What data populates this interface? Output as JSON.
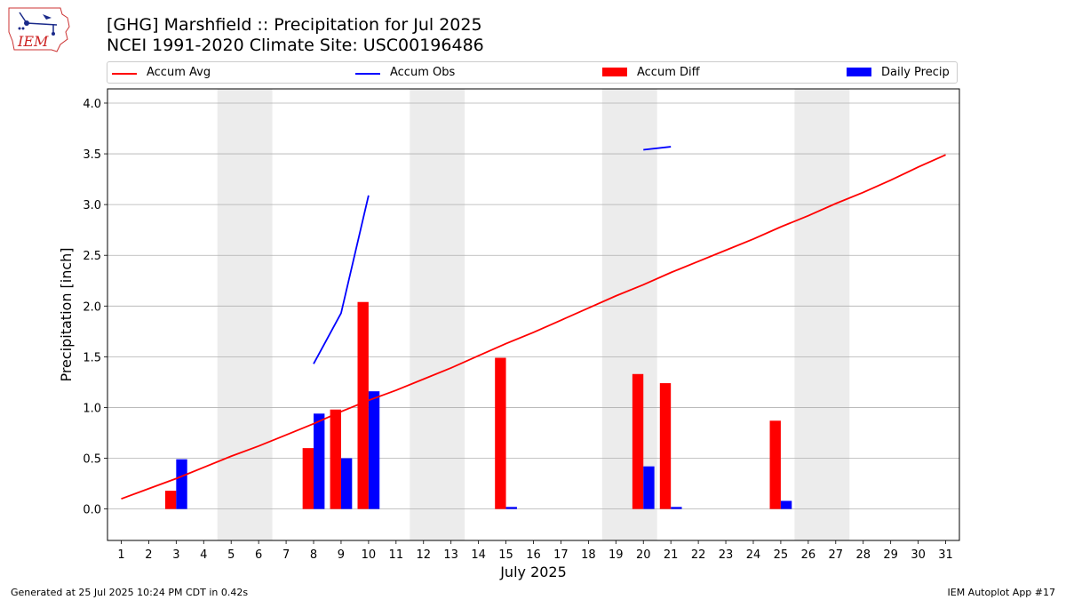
{
  "header": {
    "title_line1": "[GHG] Marshfield :: Precipitation for Jul 2025",
    "title_line2": "NCEI 1991-2020 Climate Site: USC00196486",
    "logo_text": "IEM"
  },
  "footer": {
    "left": "Generated at 25 Jul 2025 10:24 PM CDT in 0.42s",
    "right": "IEM Autoplot App #17"
  },
  "colors": {
    "accum_avg": "#ff0000",
    "accum_obs": "#0000ff",
    "accum_diff": "#ff0000",
    "daily_precip": "#0000ff",
    "weekend_shade": "#ececec",
    "grid": "#b0b0b0"
  },
  "chart_data": {
    "type": "bar",
    "xlabel": "July 2025",
    "ylabel": "Precipitation [inch]",
    "xlim": [
      0.5,
      31.5
    ],
    "ylim": [
      -0.31,
      4.14
    ],
    "x_ticks": [
      1,
      2,
      3,
      4,
      5,
      6,
      7,
      8,
      9,
      10,
      11,
      12,
      13,
      14,
      15,
      16,
      17,
      18,
      19,
      20,
      21,
      22,
      23,
      24,
      25,
      26,
      27,
      28,
      29,
      30,
      31
    ],
    "y_ticks": [
      0.0,
      0.5,
      1.0,
      1.5,
      2.0,
      2.5,
      3.0,
      3.5,
      4.0
    ],
    "y_tick_labels": [
      "0.0",
      "0.5",
      "1.0",
      "1.5",
      "2.0",
      "2.5",
      "3.0",
      "3.5",
      "4.0"
    ],
    "grid": "horizontal",
    "legend": {
      "placement": "top",
      "entries": [
        {
          "label": "Accum Avg",
          "kind": "line",
          "color": "#ff0000"
        },
        {
          "label": "Accum Obs",
          "kind": "line",
          "color": "#0000ff"
        },
        {
          "label": "Accum Diff",
          "kind": "bar",
          "color": "#ff0000"
        },
        {
          "label": "Daily Precip",
          "kind": "bar",
          "color": "#0000ff"
        }
      ]
    },
    "weekend_spans": [
      [
        5,
        6
      ],
      [
        12,
        13
      ],
      [
        19,
        20
      ],
      [
        26,
        27
      ]
    ],
    "accum_avg": {
      "x": [
        1,
        2,
        3,
        4,
        5,
        6,
        7,
        8,
        9,
        10,
        11,
        12,
        13,
        14,
        15,
        16,
        17,
        18,
        19,
        20,
        21,
        22,
        23,
        24,
        25,
        26,
        27,
        28,
        29,
        30,
        31
      ],
      "y": [
        0.1,
        0.2,
        0.3,
        0.41,
        0.52,
        0.62,
        0.73,
        0.84,
        0.96,
        1.07,
        1.17,
        1.28,
        1.39,
        1.51,
        1.63,
        1.74,
        1.86,
        1.98,
        2.1,
        2.21,
        2.33,
        2.44,
        2.55,
        2.66,
        2.78,
        2.89,
        3.01,
        3.12,
        3.24,
        3.37,
        3.49
      ]
    },
    "accum_obs": [
      {
        "x": [
          8,
          9,
          10
        ],
        "y": [
          1.43,
          1.93,
          3.09
        ]
      },
      {
        "x": [
          20,
          21
        ],
        "y": [
          3.54,
          3.57
        ]
      }
    ],
    "accum_diff": {
      "x": [
        3,
        8,
        9,
        10,
        15,
        20,
        21,
        25
      ],
      "y": [
        0.18,
        0.6,
        0.98,
        2.04,
        1.49,
        1.33,
        1.24,
        0.87
      ]
    },
    "daily_precip": {
      "x": [
        3,
        8,
        9,
        10,
        15,
        20,
        21,
        25
      ],
      "y": [
        0.49,
        0.94,
        0.5,
        1.16,
        0.02,
        0.42,
        0.02,
        0.08
      ]
    }
  }
}
